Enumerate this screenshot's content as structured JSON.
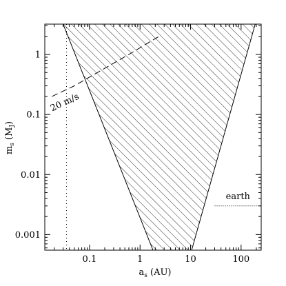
{
  "chart_data": {
    "type": "area",
    "xlabel_main": "a",
    "xlabel_sub": "s",
    "xlabel_unit": " (AU)",
    "ylabel_main": "m",
    "ylabel_sub": "s",
    "ylabel_unit_open": " (M",
    "ylabel_unit_sub": "J",
    "ylabel_unit_close": ")",
    "x_scale": "log",
    "y_scale": "log",
    "xlim": [
      0.013,
      250
    ],
    "ylim": [
      0.00055,
      3.2
    ],
    "x_ticks": [
      {
        "value": 0.1,
        "label": "0.1"
      },
      {
        "value": 1,
        "label": "1"
      },
      {
        "value": 10,
        "label": "10"
      },
      {
        "value": 100,
        "label": "100"
      }
    ],
    "y_ticks": [
      {
        "value": 0.001,
        "label": "0.001"
      },
      {
        "value": 0.01,
        "label": "0.01"
      },
      {
        "value": 0.1,
        "label": "0.1"
      },
      {
        "value": 1,
        "label": "1"
      }
    ],
    "hatched_region": {
      "vertices": [
        {
          "x": 0.03,
          "y": 3.2
        },
        {
          "x": 190,
          "y": 3.2
        },
        {
          "x": 10.5,
          "y": 0.00055
        },
        {
          "x": 1.8,
          "y": 0.00055
        }
      ]
    },
    "rv_line": {
      "label": "20 m/s",
      "points": [
        {
          "x": 0.018,
          "y": 0.2
        },
        {
          "x": 0.05,
          "y": 0.3
        },
        {
          "x": 0.11,
          "y": 0.44
        },
        {
          "x": 0.6,
          "y": 1.0
        },
        {
          "x": 2.5,
          "y": 2.05
        }
      ]
    },
    "vertical_dotted_line": {
      "x": 0.035
    },
    "earth_line": {
      "label": "earth",
      "x_start": 30,
      "x_end": 250,
      "y": 0.003
    }
  }
}
